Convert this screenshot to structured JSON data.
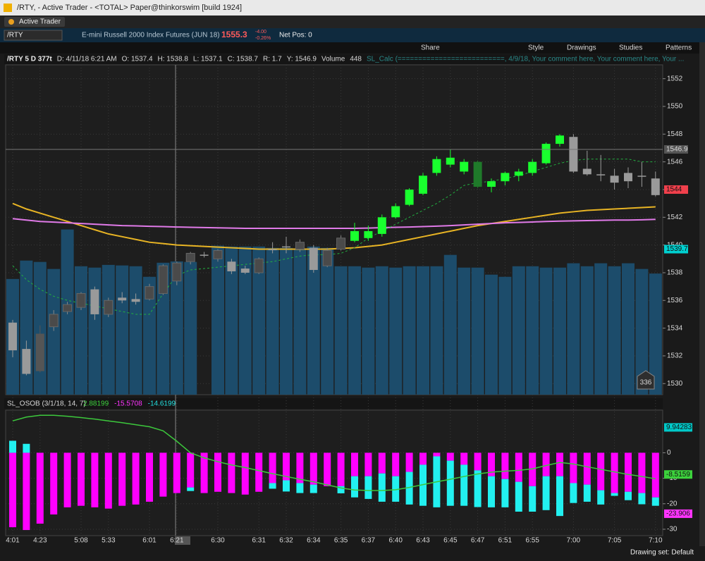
{
  "window": {
    "title": "/RTY,  - Active Trader - <TOTAL> Paper@thinkorswim [build 1924]"
  },
  "tab": "Active Trader",
  "quote": {
    "symbol": "/RTY",
    "description": "E-mini Russell 2000 Index Futures (JUN 18)",
    "last": "1555.3",
    "change": "-4.00",
    "change_pct": "-0.26%",
    "net_pos": "Net Pos: 0"
  },
  "toolbar": [
    "Share",
    "Style",
    "Drawings",
    "Studies",
    "Patterns"
  ],
  "status_line": [
    "/RTY 5 D 377t",
    "D: 4/11/18 6:21 AM",
    "O: 1537.4",
    "H: 1538.8",
    "L: 1537.1",
    "C: 1538.7",
    "R: 1.7",
    "Y: 1546.9",
    "Volume",
    "448",
    "SL_Calc (==========================, 4/9/18, Your comment here, Your comment here, Your ..."
  ],
  "price_chart": {
    "type": "candlestick",
    "categories": [
      "4:01",
      null,
      "4:23",
      null,
      null,
      "5:08",
      null,
      "5:33",
      null,
      null,
      "6:01",
      null,
      "6:21",
      null,
      null,
      "6:30",
      null,
      null,
      "6:31",
      null,
      "6:32",
      null,
      "6:34",
      null,
      "6:35",
      null,
      "6:37",
      null,
      "6:40",
      null,
      "6:43",
      null,
      "6:45",
      null,
      "6:47",
      null,
      "6:51",
      null,
      "6:55",
      null,
      null,
      "7:00",
      null,
      null,
      "7:05",
      null,
      null,
      "7:10"
    ],
    "open": [
      1534.4,
      1532.5,
      1533.6,
      1535.0,
      1535.2,
      1535.5,
      1536.8,
      1535.0,
      1536.2,
      1536.1,
      1536.1,
      1536.5,
      1537.4,
      1538.8,
      1539.3,
      1539.0,
      1538.8,
      1538.3,
      1538.0,
      1539.7,
      1539.9,
      1539.7,
      1539.8,
      1538.5,
      1539.7,
      1540.3,
      1540.5,
      1540.8,
      1542.0,
      1542.9,
      1543.7,
      1545.2,
      1545.8,
      1545.3,
      1546.0,
      1544.2,
      1544.6,
      1545.0,
      1545.2,
      1545.9,
      1547.3,
      1547.8,
      1545.5,
      1545.1,
      1545.0,
      1545.2,
      1545.0,
      1544.8
    ],
    "high": [
      1534.6,
      1533.1,
      1534.2,
      1535.3,
      1535.9,
      1536.6,
      1537.0,
      1536.2,
      1536.6,
      1536.5,
      1537.2,
      1538.6,
      1538.8,
      1539.5,
      1539.5,
      1539.7,
      1539.0,
      1538.5,
      1539.1,
      1540.2,
      1540.6,
      1540.4,
      1540.0,
      1539.8,
      1540.7,
      1541.6,
      1541.4,
      1542.2,
      1543.0,
      1544.1,
      1545.2,
      1546.4,
      1546.9,
      1546.2,
      1546.1,
      1544.8,
      1545.3,
      1545.5,
      1546.2,
      1547.4,
      1548.0,
      1548.0,
      1546.8,
      1546.5,
      1545.5,
      1545.6,
      1546.0,
      1545.3
    ],
    "low": [
      1531.9,
      1530.6,
      1530.8,
      1533.8,
      1535.0,
      1535.3,
      1534.6,
      1534.8,
      1535.8,
      1535.7,
      1536.0,
      1536.4,
      1537.1,
      1538.6,
      1539.1,
      1538.8,
      1537.9,
      1537.9,
      1537.9,
      1539.4,
      1539.4,
      1539.5,
      1538.0,
      1538.4,
      1539.6,
      1540.2,
      1540.3,
      1540.6,
      1541.9,
      1542.8,
      1543.6,
      1545.0,
      1545.6,
      1545.1,
      1544.1,
      1543.8,
      1544.3,
      1544.6,
      1545.0,
      1545.8,
      1547.1,
      1545.2,
      1545.0,
      1544.6,
      1544.0,
      1544.1,
      1544.2,
      1543.5
    ],
    "close": [
      1532.4,
      1530.7,
      1530.9,
      1534.1,
      1535.7,
      1536.5,
      1535.0,
      1536.0,
      1536.0,
      1535.9,
      1537.0,
      1538.5,
      1538.7,
      1539.4,
      1539.3,
      1539.6,
      1538.1,
      1538.0,
      1539.0,
      1539.7,
      1539.9,
      1540.2,
      1538.2,
      1539.6,
      1540.5,
      1541.0,
      1541.0,
      1542.0,
      1542.8,
      1544.0,
      1545.0,
      1546.2,
      1546.3,
      1546.0,
      1544.2,
      1544.6,
      1545.2,
      1545.3,
      1546.0,
      1547.3,
      1547.9,
      1545.3,
      1545.1,
      1545.1,
      1544.5,
      1544.6,
      1545.0,
      1543.6
    ],
    "candle_colors": [
      "#9a9a9a",
      "#9a9a9a",
      "#555555",
      "#4a4a4a",
      "#4a4a4a",
      "#4a4a4a",
      "#9a9a9a",
      "#4a4a4a",
      "#9a9a9a",
      "#9a9a9a",
      "#4a4a4a",
      "#4a4a4a",
      "#4a4a4a",
      "#4a4a4a",
      "#9a9a9a",
      "#4a4a4a",
      "#9a9a9a",
      "#9a9a9a",
      "#4a4a4a",
      "#9a9a9a",
      "#9a9a9a",
      "#4a4a4a",
      "#9a9a9a",
      "#4a4a4a",
      "#4a4a4a",
      "#19ff2e",
      "#19ff2e",
      "#19ff2e",
      "#19ff2e",
      "#19ff2e",
      "#19ff2e",
      "#19ff2e",
      "#19ff2e",
      "#19ff2e",
      "#1f7a2a",
      "#19ff2e",
      "#19ff2e",
      "#19ff2e",
      "#19ff2e",
      "#19ff2e",
      "#19ff2e",
      "#9a9a9a",
      "#9a9a9a",
      "#9a9a9a",
      "#9a9a9a",
      "#9a9a9a",
      "#9a9a9a",
      "#9a9a9a"
    ],
    "ylim": [
      1529.2,
      1553
    ],
    "yticks": [
      1530,
      1532,
      1534,
      1536,
      1538,
      1540,
      1542,
      1544,
      1546,
      1548,
      1550,
      1552
    ],
    "volume": [
      428,
      496,
      491,
      465,
      611,
      475,
      470,
      480,
      478,
      475,
      436,
      488,
      493,
      491,
      0,
      551,
      548,
      548,
      548,
      543,
      543,
      540,
      548,
      543,
      475,
      475,
      470,
      475,
      470,
      475,
      475,
      475,
      517,
      470,
      470,
      444,
      436,
      475,
      475,
      470,
      470,
      486,
      475,
      486,
      475,
      486,
      465,
      448
    ],
    "volume_color": "#1c4c6b",
    "volume_lim": [
      0,
      1220
    ],
    "volume_badge": "336",
    "overlays": [
      {
        "color": "#e8b424",
        "dash": false,
        "values": [
          1543.0,
          1542.6,
          1542.3,
          1542.0,
          1541.7,
          1541.4,
          1541.1,
          1540.8,
          1540.6,
          1540.4,
          1540.2,
          1540.1,
          1540.0,
          1539.95,
          1539.9,
          1539.85,
          1539.8,
          1539.75,
          1539.7,
          1539.7,
          1539.7,
          1539.7,
          1539.7,
          1539.7,
          1539.75,
          1539.8,
          1539.9,
          1540.0,
          1540.2,
          1540.4,
          1540.6,
          1540.8,
          1541.0,
          1541.2,
          1541.4,
          1541.55,
          1541.7,
          1541.85,
          1542.0,
          1542.15,
          1542.3,
          1542.4,
          1542.5,
          1542.55,
          1542.6,
          1542.65,
          1542.7,
          1542.75
        ]
      },
      {
        "color": "#e07ae8",
        "dash": false,
        "values": [
          1541.9,
          1541.8,
          1541.7,
          1541.65,
          1541.6,
          1541.55,
          1541.5,
          1541.45,
          1541.4,
          1541.38,
          1541.35,
          1541.33,
          1541.3,
          1541.28,
          1541.26,
          1541.24,
          1541.22,
          1541.2,
          1541.2,
          1541.2,
          1541.2,
          1541.2,
          1541.2,
          1541.2,
          1541.2,
          1541.2,
          1541.22,
          1541.25,
          1541.28,
          1541.3,
          1541.33,
          1541.36,
          1541.4,
          1541.45,
          1541.5,
          1541.55,
          1541.6,
          1541.63,
          1541.66,
          1541.7,
          1541.72,
          1541.74,
          1541.76,
          1541.78,
          1541.8,
          1541.8,
          1541.82,
          1541.85
        ]
      },
      {
        "color": "#22b040",
        "dash": true,
        "values": [
          1538.5,
          1537.5,
          1536.8,
          1536.3,
          1536.0,
          1535.8,
          1535.6,
          1535.4,
          1535.2,
          1535.0,
          1535.0,
          1536.5,
          1537.8,
          1538.2,
          1538.3,
          1538.4,
          1538.5,
          1538.6,
          1538.7,
          1538.8,
          1539.0,
          1539.2,
          1539.3,
          1539.3,
          1539.4,
          1539.8,
          1540.5,
          1541.0,
          1541.5,
          1542.0,
          1542.5,
          1543.0,
          1543.6,
          1544.3,
          1544.5,
          1544.6,
          1544.8,
          1545.0,
          1545.3,
          1545.6,
          1545.9,
          1546.1,
          1546.2,
          1546.2,
          1546.2,
          1546.2,
          1546.0,
          1546.0
        ]
      }
    ],
    "badges": [
      {
        "value": 1546.9,
        "color": "#555555",
        "text_color": "#dddddd"
      },
      {
        "value": 1544,
        "color": "#f0404c",
        "text_color": "#111111"
      },
      {
        "value": 1539.7,
        "color": "#00d0d0",
        "text_color": "#111111"
      }
    ]
  },
  "oscillator": {
    "type": "bar",
    "name": "SL_OSOB (3/1/18, 14, 7)",
    "readouts": [
      {
        "text": "2.88199",
        "color": "#3cd23c"
      },
      {
        "text": "-15.5708",
        "color": "#ff33ff"
      },
      {
        "text": "-14.6199",
        "color": "#22e0e0"
      }
    ],
    "series": [
      {
        "color": "#ff00ff",
        "values": [
          -29.2,
          -30.3,
          -27.8,
          -24.2,
          -21.4,
          -20.8,
          -21.4,
          -21.9,
          -20.8,
          -20.3,
          -19.2,
          -17.2,
          -15.8,
          -13.6,
          -15.8,
          -15.3,
          -15.8,
          -16.4,
          -15.3,
          -11.9,
          -10.8,
          -11.9,
          -12.5,
          -13.1,
          -13.1,
          -9.2,
          -9.2,
          -8.1,
          -9.2,
          -7.5,
          -4.7,
          -1.4,
          -3.1,
          -4.7,
          -6.9,
          -9.2,
          -10.3,
          -11.4,
          -13.1,
          -9.2,
          -9.2,
          -11.9,
          -12.5,
          -14.7,
          -15.8,
          -15.3,
          -15.8,
          -17.5
        ]
      },
      {
        "color": "#22f0f0",
        "values": [
          4.7,
          3.5,
          0,
          0,
          0,
          0,
          0,
          0,
          0,
          0,
          0,
          0,
          0,
          -1.4,
          0,
          0,
          0,
          0,
          0,
          -2.2,
          -4.4,
          -3.9,
          -3.3,
          0,
          -2.8,
          -8.3,
          -8.9,
          -11.1,
          -10,
          -12.8,
          -16.1,
          -20,
          -17.7,
          -16.1,
          -14.4,
          -12.2,
          -11.1,
          -11.7,
          -10,
          -13.3,
          -15.6,
          -7.8,
          -6.7,
          -5.6,
          -1.1,
          -3.3,
          -4.4,
          -3.3
        ]
      }
    ],
    "line": {
      "color": "#3cc83c",
      "values": [
        12.5,
        14,
        14.7,
        14.7,
        14.3,
        13.8,
        13.2,
        12.5,
        11.8,
        11.0,
        10.2,
        8.6,
        4.5,
        0,
        -2.0,
        -3.5,
        -4.8,
        -5.8,
        -7.0,
        -8.2,
        -9.3,
        -10.4,
        -11.4,
        -12.6,
        -13.8,
        -14.6,
        -14.8,
        -14.8,
        -14.5,
        -13.6,
        -12.5,
        -11.4,
        -10.4,
        -9.3,
        -8.3,
        -7.6,
        -7.2,
        -6.9,
        -6.3,
        -5.0,
        -3.8,
        -4.4,
        -5.5,
        -6.5,
        -7.5,
        -8.5,
        -9.3,
        -10.2
      ]
    },
    "ylim": [
      -32.5,
      16.7
    ],
    "yticks": [
      0,
      -10,
      -20,
      -30
    ],
    "badges": [
      {
        "value": 9.94283,
        "color": "#00c8c8"
      },
      {
        "value": -8.5159,
        "color": "#3cd23c"
      },
      {
        "value": -23.906,
        "color": "#ff33ff"
      }
    ]
  },
  "footer": {
    "drawing_set": "Drawing set: Default"
  }
}
